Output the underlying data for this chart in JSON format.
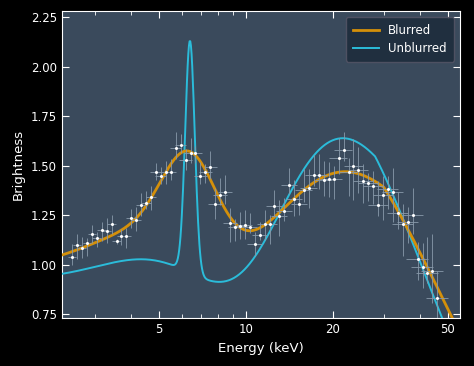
{
  "bg_color": "#3a4a5c",
  "outer_bg": "#000000",
  "blurred_color": "#d4900a",
  "unblurred_color": "#2bbcda",
  "data_color": "#ffffff",
  "xlabel": "Energy (keV)",
  "ylabel": "Brightness",
  "xlim": [
    2.3,
    55
  ],
  "ylim": [
    0.73,
    2.28
  ],
  "yticks": [
    0.75,
    1.0,
    1.25,
    1.5,
    1.75,
    2.0,
    2.25
  ],
  "xticks": [
    5,
    10,
    20,
    50
  ],
  "legend_labels": [
    "Blurred",
    "Unblurred"
  ],
  "legend_colors": [
    "#d4900a",
    "#2bbcda"
  ]
}
